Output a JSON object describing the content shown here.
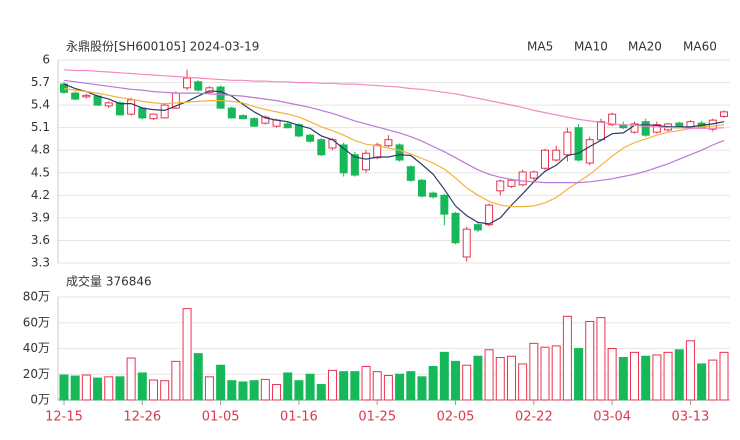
{
  "chart_data": [
    {
      "type": "candlestick",
      "title": "永鼎股份[SH600105] 2024-03-19",
      "ylim": [
        3.3,
        6
      ],
      "yticks": [
        6,
        5.7,
        5.4,
        5.1,
        4.8,
        4.5,
        4.2,
        3.9,
        3.6,
        3.3
      ],
      "grid": true,
      "up_color": "#e8334f",
      "down_color": "#16b85a",
      "open": [
        5.68,
        5.56,
        5.51,
        5.52,
        5.39,
        5.43,
        5.28,
        5.36,
        5.22,
        5.23,
        5.36,
        5.63,
        5.71,
        5.57,
        5.64,
        5.36,
        5.26,
        5.22,
        5.16,
        5.12,
        5.15,
        5.14,
        5.0,
        4.94,
        4.83,
        4.87,
        4.74,
        4.54,
        4.7,
        4.86,
        4.87,
        4.58,
        4.4,
        4.23,
        4.2,
        3.96,
        3.38,
        3.81,
        3.81,
        4.26,
        4.32,
        4.34,
        4.43,
        4.56,
        4.67,
        4.74,
        5.1,
        4.63,
        4.94,
        5.14,
        5.14,
        5.04,
        5.18,
        5.04,
        5.07,
        5.16,
        5.1,
        5.16,
        5.08,
        5.25
      ],
      "high": [
        5.71,
        5.58,
        5.55,
        5.54,
        5.45,
        5.45,
        5.5,
        5.38,
        5.29,
        5.42,
        5.58,
        5.87,
        5.73,
        5.65,
        5.66,
        5.38,
        5.28,
        5.24,
        5.26,
        5.22,
        5.17,
        5.16,
        5.02,
        4.96,
        4.96,
        4.9,
        4.78,
        4.8,
        4.9,
        5.0,
        4.89,
        4.6,
        4.42,
        4.25,
        4.22,
        3.98,
        3.78,
        3.84,
        4.09,
        4.41,
        4.42,
        4.54,
        4.53,
        4.82,
        4.86,
        5.1,
        5.15,
        4.98,
        5.22,
        5.3,
        5.18,
        5.18,
        5.22,
        5.18,
        5.16,
        5.18,
        5.2,
        5.19,
        5.22,
        5.33
      ],
      "low": [
        5.55,
        5.47,
        5.49,
        5.39,
        5.36,
        5.26,
        5.26,
        5.21,
        5.2,
        5.22,
        5.35,
        5.6,
        5.58,
        5.55,
        5.35,
        5.22,
        5.21,
        5.11,
        5.14,
        5.1,
        5.09,
        4.97,
        4.9,
        4.72,
        4.8,
        4.45,
        4.45,
        4.5,
        4.68,
        4.84,
        4.65,
        4.38,
        4.17,
        4.16,
        3.8,
        3.55,
        3.32,
        3.71,
        3.79,
        4.2,
        4.3,
        4.32,
        4.4,
        4.54,
        4.65,
        4.65,
        4.65,
        4.6,
        4.92,
        5.12,
        5.08,
        5.02,
        4.98,
        5.02,
        5.05,
        5.09,
        5.08,
        5.08,
        5.05,
        5.23
      ],
      "close": [
        5.57,
        5.48,
        5.53,
        5.4,
        5.43,
        5.27,
        5.47,
        5.23,
        5.28,
        5.4,
        5.56,
        5.76,
        5.6,
        5.63,
        5.36,
        5.23,
        5.22,
        5.12,
        5.24,
        5.2,
        5.1,
        4.99,
        4.92,
        4.74,
        4.94,
        4.5,
        4.47,
        4.76,
        4.87,
        4.94,
        4.67,
        4.4,
        4.19,
        4.18,
        3.95,
        3.57,
        3.75,
        3.74,
        4.07,
        4.39,
        4.4,
        4.51,
        4.51,
        4.8,
        4.8,
        5.04,
        4.67,
        4.94,
        5.18,
        5.28,
        5.1,
        5.15,
        5.0,
        5.14,
        5.15,
        5.1,
        5.18,
        5.1,
        5.2,
        5.31
      ],
      "series": [
        {
          "name": "MA5",
          "color": "#2c3a66",
          "values": [
            5.68,
            5.62,
            5.58,
            5.52,
            5.48,
            5.42,
            5.42,
            5.36,
            5.34,
            5.33,
            5.39,
            5.45,
            5.52,
            5.59,
            5.58,
            5.52,
            5.41,
            5.31,
            5.23,
            5.2,
            5.18,
            5.13,
            5.09,
            4.99,
            4.94,
            4.82,
            4.71,
            4.68,
            4.71,
            4.71,
            4.74,
            4.73,
            4.61,
            4.48,
            4.28,
            4.06,
            3.93,
            3.84,
            3.82,
            3.9,
            4.07,
            4.22,
            4.38,
            4.52,
            4.6,
            4.73,
            4.76,
            4.85,
            4.93,
            5.02,
            5.03,
            5.13,
            5.14,
            5.13,
            5.11,
            5.11,
            5.11,
            5.13,
            5.15,
            5.18
          ]
        },
        {
          "name": "MA10",
          "color": "#f3b33f",
          "values": [
            5.62,
            5.6,
            5.58,
            5.56,
            5.53,
            5.5,
            5.48,
            5.45,
            5.43,
            5.42,
            5.43,
            5.44,
            5.45,
            5.46,
            5.46,
            5.45,
            5.43,
            5.38,
            5.34,
            5.31,
            5.28,
            5.24,
            5.18,
            5.11,
            5.06,
            5.0,
            4.93,
            4.88,
            4.86,
            4.83,
            4.8,
            4.75,
            4.69,
            4.63,
            4.55,
            4.43,
            4.3,
            4.2,
            4.12,
            4.07,
            4.05,
            4.05,
            4.06,
            4.1,
            4.17,
            4.28,
            4.38,
            4.48,
            4.6,
            4.72,
            4.83,
            4.9,
            4.95,
            5.0,
            5.04,
            5.06,
            5.09,
            5.11,
            5.12,
            5.14
          ]
        },
        {
          "name": "MA20",
          "color": "#b979d9",
          "values": [
            5.73,
            5.71,
            5.69,
            5.67,
            5.65,
            5.63,
            5.61,
            5.6,
            5.58,
            5.57,
            5.56,
            5.56,
            5.56,
            5.55,
            5.54,
            5.53,
            5.52,
            5.5,
            5.48,
            5.46,
            5.43,
            5.4,
            5.37,
            5.33,
            5.29,
            5.24,
            5.19,
            5.15,
            5.11,
            5.07,
            5.03,
            4.98,
            4.92,
            4.85,
            4.78,
            4.7,
            4.62,
            4.54,
            4.48,
            4.44,
            4.41,
            4.39,
            4.38,
            4.37,
            4.37,
            4.37,
            4.37,
            4.38,
            4.4,
            4.42,
            4.45,
            4.48,
            4.52,
            4.57,
            4.62,
            4.68,
            4.74,
            4.8,
            4.87,
            4.93
          ]
        },
        {
          "name": "MA60",
          "color": "#f28bc3",
          "values": [
            5.87,
            5.86,
            5.86,
            5.85,
            5.84,
            5.83,
            5.82,
            5.81,
            5.8,
            5.79,
            5.78,
            5.77,
            5.76,
            5.75,
            5.74,
            5.73,
            5.73,
            5.72,
            5.72,
            5.71,
            5.71,
            5.7,
            5.7,
            5.69,
            5.69,
            5.68,
            5.68,
            5.67,
            5.66,
            5.65,
            5.64,
            5.62,
            5.61,
            5.59,
            5.57,
            5.55,
            5.52,
            5.49,
            5.46,
            5.43,
            5.4,
            5.37,
            5.33,
            5.3,
            5.27,
            5.24,
            5.21,
            5.19,
            5.17,
            5.15,
            5.14,
            5.13,
            5.12,
            5.11,
            5.1,
            5.1,
            5.09,
            5.09,
            5.09,
            5.1
          ]
        }
      ]
    },
    {
      "type": "bar",
      "title": "成交量 376846",
      "ylim": [
        0,
        80
      ],
      "yticks": [
        {
          "value": 80,
          "label": "80万"
        },
        {
          "value": 60,
          "label": "60万"
        },
        {
          "value": 40,
          "label": "40万"
        },
        {
          "value": 20,
          "label": "20万"
        },
        {
          "value": 0,
          "label": "0万"
        }
      ],
      "categories": [
        "12-15",
        null,
        null,
        null,
        null,
        null,
        null,
        "12-26",
        null,
        null,
        null,
        null,
        null,
        null,
        "01-05",
        null,
        null,
        null,
        null,
        null,
        null,
        "01-16",
        null,
        null,
        null,
        null,
        null,
        null,
        "01-25",
        null,
        null,
        null,
        null,
        null,
        null,
        "02-05",
        null,
        null,
        null,
        null,
        null,
        null,
        "02-22",
        null,
        null,
        null,
        null,
        null,
        null,
        "03-04",
        null,
        null,
        null,
        null,
        null,
        null,
        "03-13",
        null,
        null,
        null
      ],
      "values": [
        19.4,
        18.6,
        19.4,
        17,
        18,
        18,
        32.6,
        21,
        15.5,
        15,
        30,
        71,
        36,
        18,
        27,
        15,
        14,
        15,
        16,
        12,
        21,
        15,
        20,
        12,
        23,
        22,
        22,
        26,
        22,
        19,
        20,
        22,
        18,
        26,
        37,
        30,
        27,
        34,
        39,
        33,
        34,
        28,
        44,
        41,
        42,
        65,
        40,
        61,
        64,
        40,
        33,
        37,
        34,
        35,
        37,
        39,
        46,
        28,
        31,
        37
      ]
    }
  ]
}
